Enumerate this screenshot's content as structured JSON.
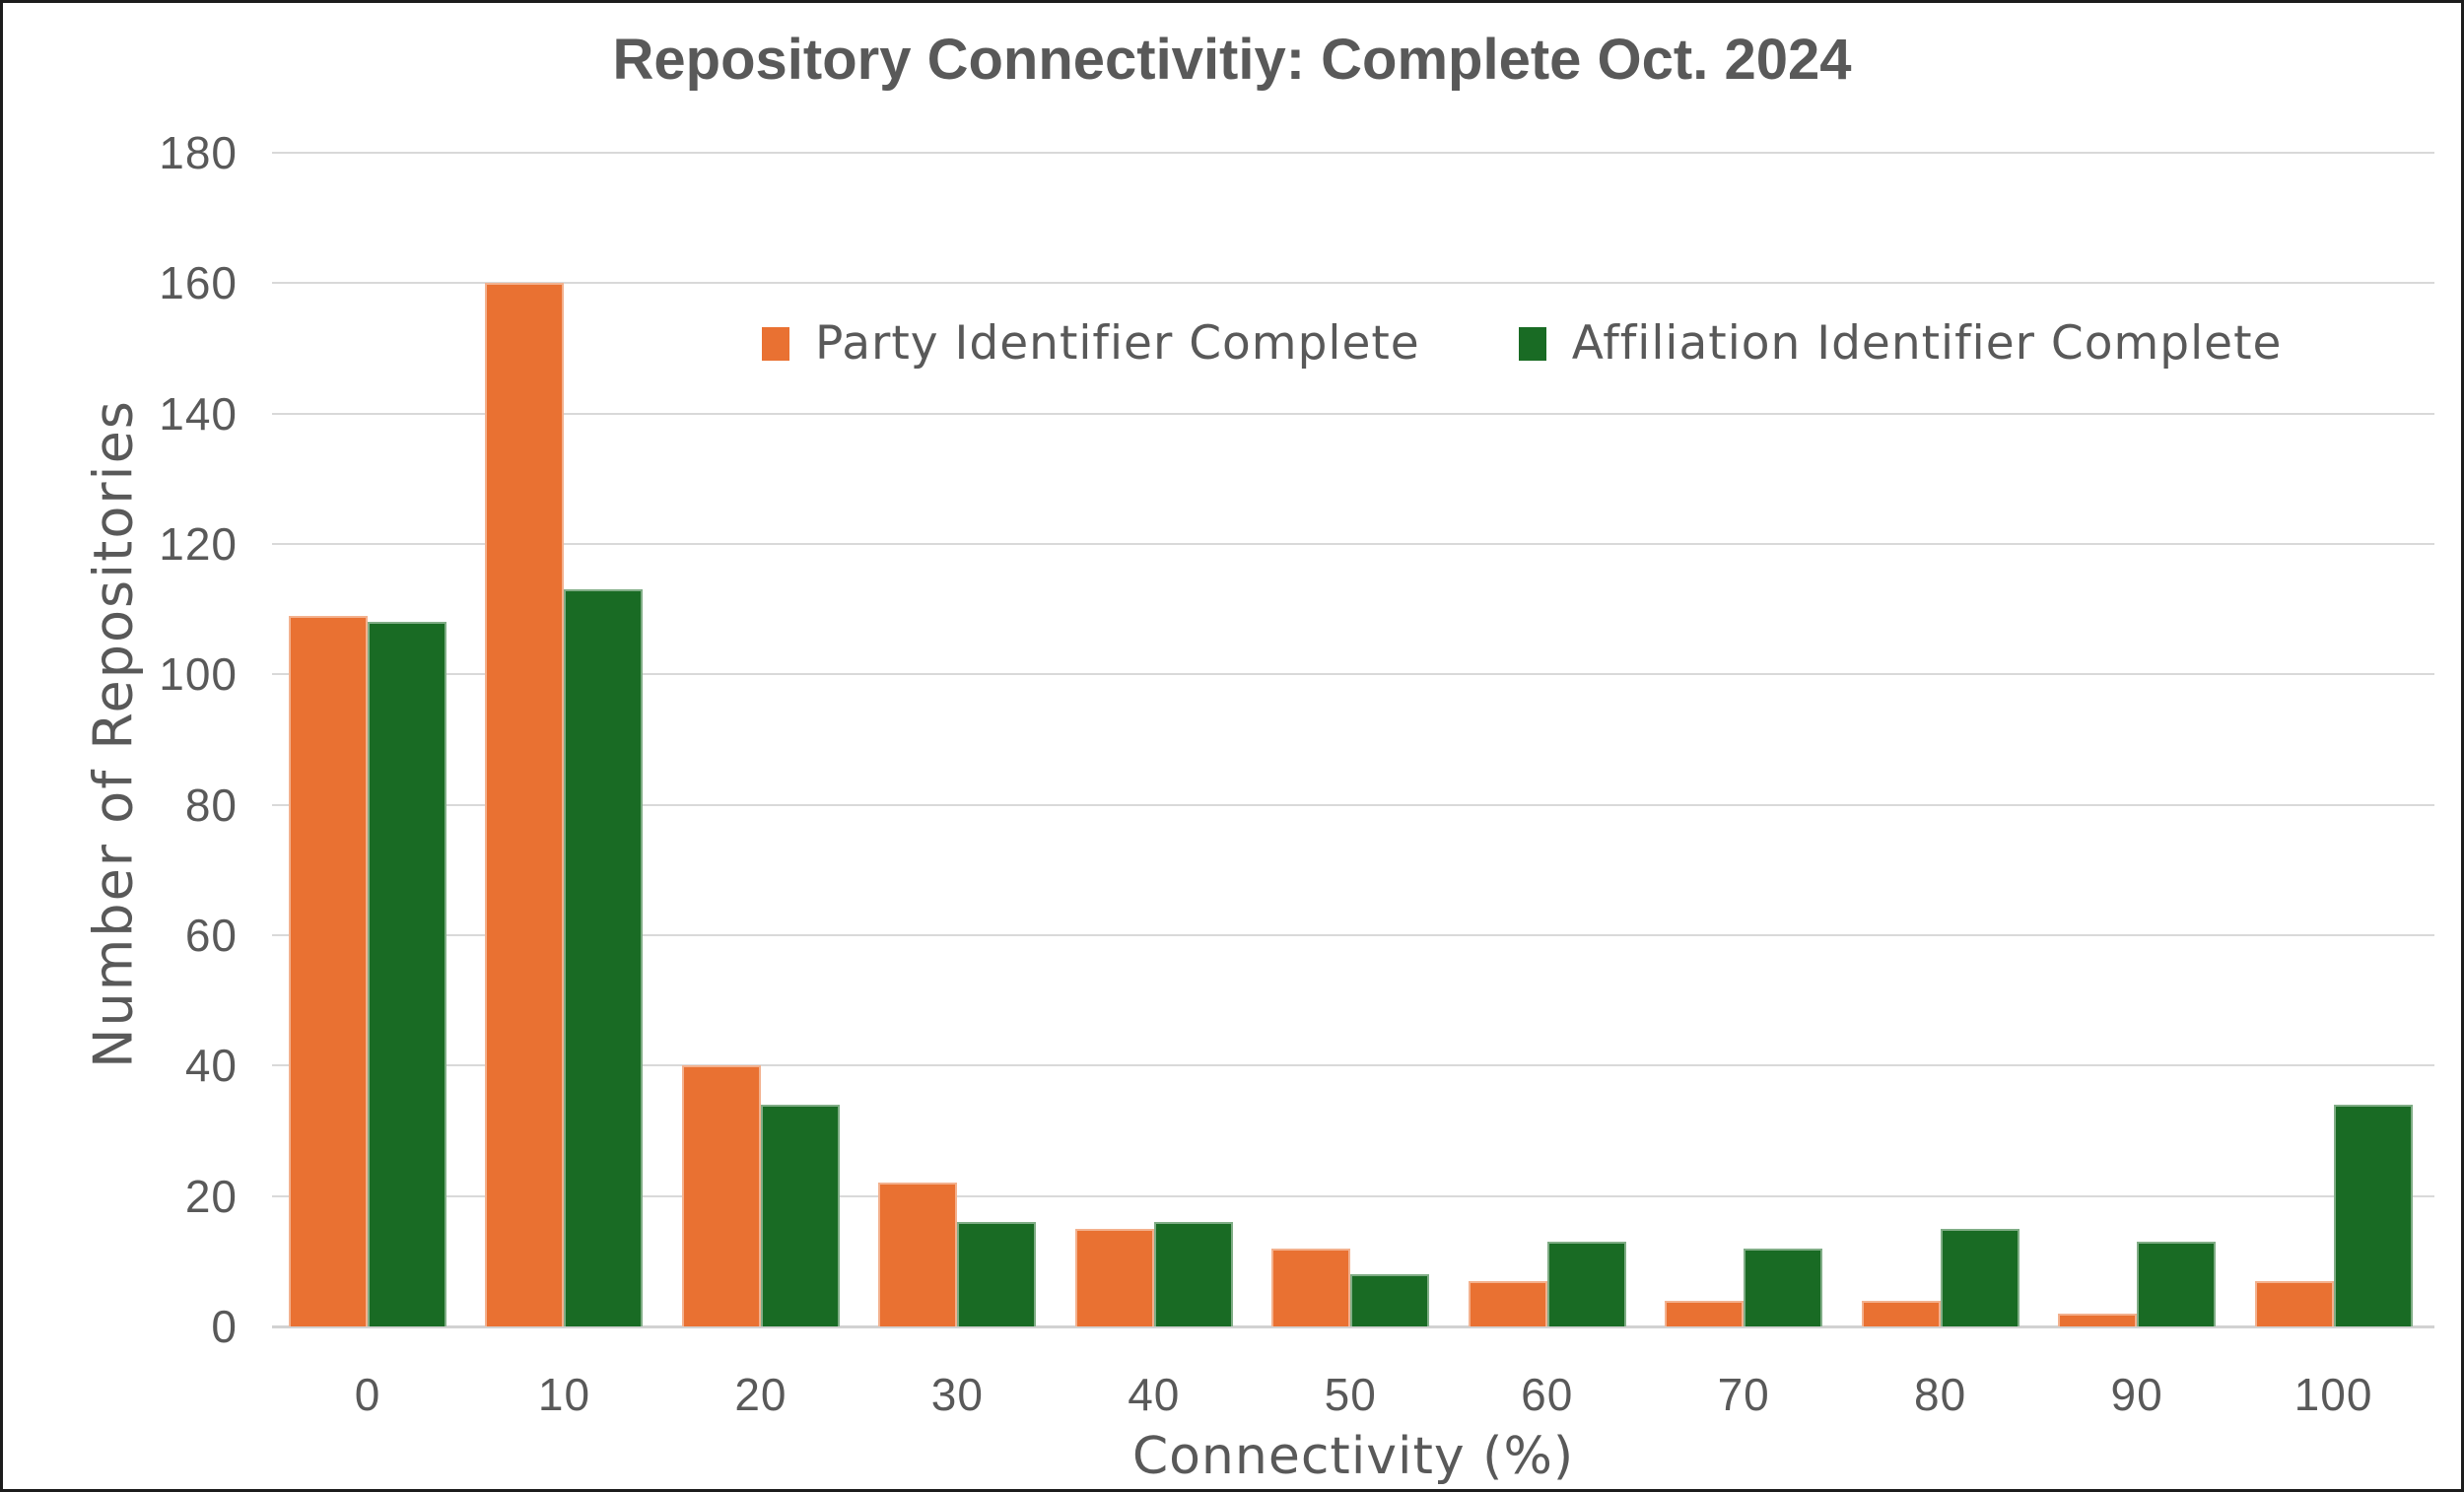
{
  "chart_data": {
    "type": "bar",
    "title": "Repository Connectivitiy: Complete Oct. 2024",
    "xlabel": "Connectivity (%)",
    "ylabel": "Number of Repositories",
    "categories": [
      "0",
      "10",
      "20",
      "30",
      "40",
      "50",
      "60",
      "70",
      "80",
      "90",
      "100"
    ],
    "series": [
      {
        "name": "Party Identifier Complete",
        "color": "#E97132",
        "values": [
          109,
          160,
          40,
          22,
          15,
          12,
          7,
          4,
          4,
          2,
          7
        ]
      },
      {
        "name": "Affiliation Identifier Complete",
        "color": "#196B24",
        "values": [
          108,
          113,
          34,
          16,
          16,
          8,
          13,
          12,
          15,
          13,
          34
        ]
      }
    ],
    "ylim": [
      0,
      180
    ],
    "yticks": [
      0,
      20,
      40,
      60,
      80,
      100,
      120,
      140,
      160,
      180
    ],
    "grid": true,
    "legend_position": "top-inside",
    "colors": {
      "text": "#595959",
      "gridline": "#D9D9D9",
      "axis_line": "#D2D2D2",
      "background": "#FFFFFF",
      "border": "#1C1C1C"
    }
  }
}
